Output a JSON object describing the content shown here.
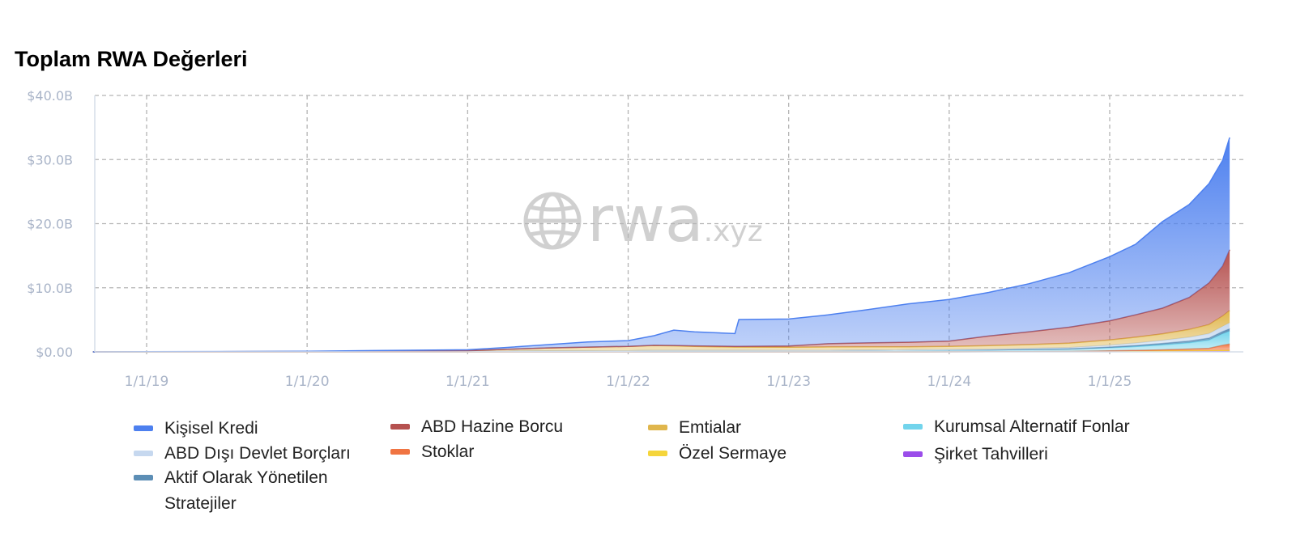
{
  "chart_data": {
    "type": "area",
    "stacked": true,
    "title": "Toplam RWA Değerleri",
    "xlabel": "",
    "ylabel": "",
    "x_ticks": [
      "1/1/19",
      "1/1/20",
      "1/1/21",
      "1/1/22",
      "1/1/23",
      "1/1/24",
      "1/1/25"
    ],
    "y_ticks": [
      "$0.00",
      "$10.0B",
      "$20.0B",
      "$30.0B",
      "$40.0B"
    ],
    "ylim": [
      0,
      40
    ],
    "y_unit": "billion USD",
    "grid": true,
    "legend_position": "bottom",
    "watermark": "rwa.xyz",
    "x": [
      "2018-09-01",
      "2019-01-01",
      "2019-06-01",
      "2020-01-01",
      "2020-06-01",
      "2021-01-01",
      "2021-04-01",
      "2021-07-01",
      "2021-10-01",
      "2022-01-01",
      "2022-03-01",
      "2022-04-15",
      "2022-06-01",
      "2022-09-01",
      "2022-09-10",
      "2023-01-01",
      "2023-04-01",
      "2023-07-01",
      "2023-10-01",
      "2024-01-01",
      "2024-04-01",
      "2024-07-01",
      "2024-10-01",
      "2025-01-01",
      "2025-03-01",
      "2025-05-01",
      "2025-07-01",
      "2025-08-15",
      "2025-09-15",
      "2025-10-01"
    ],
    "series": [
      {
        "name": "Şirket Tahvilleri",
        "color": "#9b4dea",
        "values": [
          0,
          0,
          0,
          0,
          0,
          0,
          0,
          0,
          0,
          0,
          0,
          0,
          0,
          0,
          0,
          0,
          0,
          0,
          0,
          0.01,
          0.02,
          0.03,
          0.05,
          0.08,
          0.1,
          0.12,
          0.14,
          0.15,
          0.17,
          0.18
        ]
      },
      {
        "name": "Özel Sermaye",
        "color": "#f5d53b",
        "values": [
          0,
          0,
          0,
          0,
          0,
          0,
          0,
          0,
          0,
          0,
          0,
          0,
          0,
          0,
          0,
          0,
          0,
          0,
          0,
          0,
          0,
          0,
          0,
          0.02,
          0.03,
          0.04,
          0.05,
          0.05,
          0.06,
          0.06
        ]
      },
      {
        "name": "Stoklar",
        "color": "#f07442",
        "values": [
          0,
          0,
          0,
          0,
          0,
          0,
          0,
          0,
          0,
          0,
          0,
          0,
          0,
          0,
          0,
          0,
          0,
          0,
          0,
          0,
          0,
          0,
          0,
          0.05,
          0.1,
          0.15,
          0.25,
          0.35,
          0.8,
          1.0
        ]
      },
      {
        "name": "Kurumsal Alternatif Fonlar",
        "color": "#72d4ec",
        "values": [
          0,
          0.01,
          0.02,
          0.03,
          0.05,
          0.08,
          0.1,
          0.12,
          0.14,
          0.16,
          0.2,
          0.2,
          0.2,
          0.2,
          0.2,
          0.22,
          0.22,
          0.25,
          0.3,
          0.3,
          0.3,
          0.35,
          0.4,
          0.5,
          0.6,
          0.8,
          1.0,
          1.3,
          1.8,
          2.0
        ]
      },
      {
        "name": "Aktif Olarak Yönetilen Stratejiler",
        "color": "#5c8eb5",
        "values": [
          0,
          0,
          0,
          0,
          0,
          0,
          0,
          0,
          0,
          0,
          0,
          0,
          0,
          0,
          0,
          0,
          0,
          0,
          0,
          0,
          0,
          0,
          0,
          0.1,
          0.15,
          0.2,
          0.25,
          0.3,
          0.35,
          0.4
        ]
      },
      {
        "name": "ABD Dışı Devlet Borçları",
        "color": "#c6d8ef",
        "values": [
          0,
          0,
          0,
          0,
          0,
          0,
          0,
          0,
          0,
          0,
          0,
          0,
          0,
          0,
          0,
          0,
          0,
          0,
          0,
          0.05,
          0.1,
          0.15,
          0.2,
          0.3,
          0.4,
          0.5,
          0.6,
          0.7,
          0.8,
          0.9
        ]
      },
      {
        "name": "Emtialar",
        "color": "#e0b64c",
        "values": [
          0,
          0,
          0.01,
          0.02,
          0.05,
          0.1,
          0.3,
          0.5,
          0.6,
          0.7,
          0.8,
          0.75,
          0.65,
          0.55,
          0.55,
          0.5,
          0.55,
          0.55,
          0.5,
          0.5,
          0.55,
          0.6,
          0.7,
          0.8,
          0.9,
          1.0,
          1.2,
          1.4,
          1.6,
          1.9
        ]
      },
      {
        "name": "ABD Hazine Borcu",
        "color": "#b5514f",
        "values": [
          0,
          0,
          0,
          0,
          0,
          0,
          0,
          0,
          0,
          0,
          0.02,
          0.05,
          0.08,
          0.1,
          0.1,
          0.2,
          0.5,
          0.6,
          0.7,
          0.8,
          1.5,
          2.0,
          2.5,
          3.0,
          3.5,
          4.0,
          5.0,
          6.5,
          7.8,
          9.5
        ]
      },
      {
        "name": "Kişisel Kredi",
        "color": "#4d80ef",
        "values": [
          0,
          0.01,
          0.02,
          0.04,
          0.1,
          0.15,
          0.3,
          0.5,
          0.8,
          0.9,
          1.5,
          2.4,
          2.2,
          2.0,
          4.2,
          4.2,
          4.5,
          5.2,
          6.0,
          6.5,
          6.8,
          7.5,
          8.5,
          10.0,
          11.0,
          13.5,
          14.5,
          15.5,
          16.5,
          17.5
        ]
      }
    ]
  },
  "legend": [
    {
      "label": "Kişisel Kredi",
      "color": "#4d80ef"
    },
    {
      "label": "ABD Hazine Borcu",
      "color": "#b5514f"
    },
    {
      "label": "Emtialar",
      "color": "#e0b64c"
    },
    {
      "label": "Kurumsal Alternatif Fonlar",
      "color": "#72d4ec"
    },
    {
      "label": "ABD Dışı Devlet Borçları",
      "color": "#c6d8ef"
    },
    {
      "label": "Stoklar",
      "color": "#f07442"
    },
    {
      "label": "Özel Sermaye",
      "color": "#f5d53b"
    },
    {
      "label": "Şirket Tahvilleri",
      "color": "#9b4dea"
    },
    {
      "label": "Aktif Olarak Yönetilen Stratejiler",
      "color": "#5c8eb5"
    }
  ]
}
